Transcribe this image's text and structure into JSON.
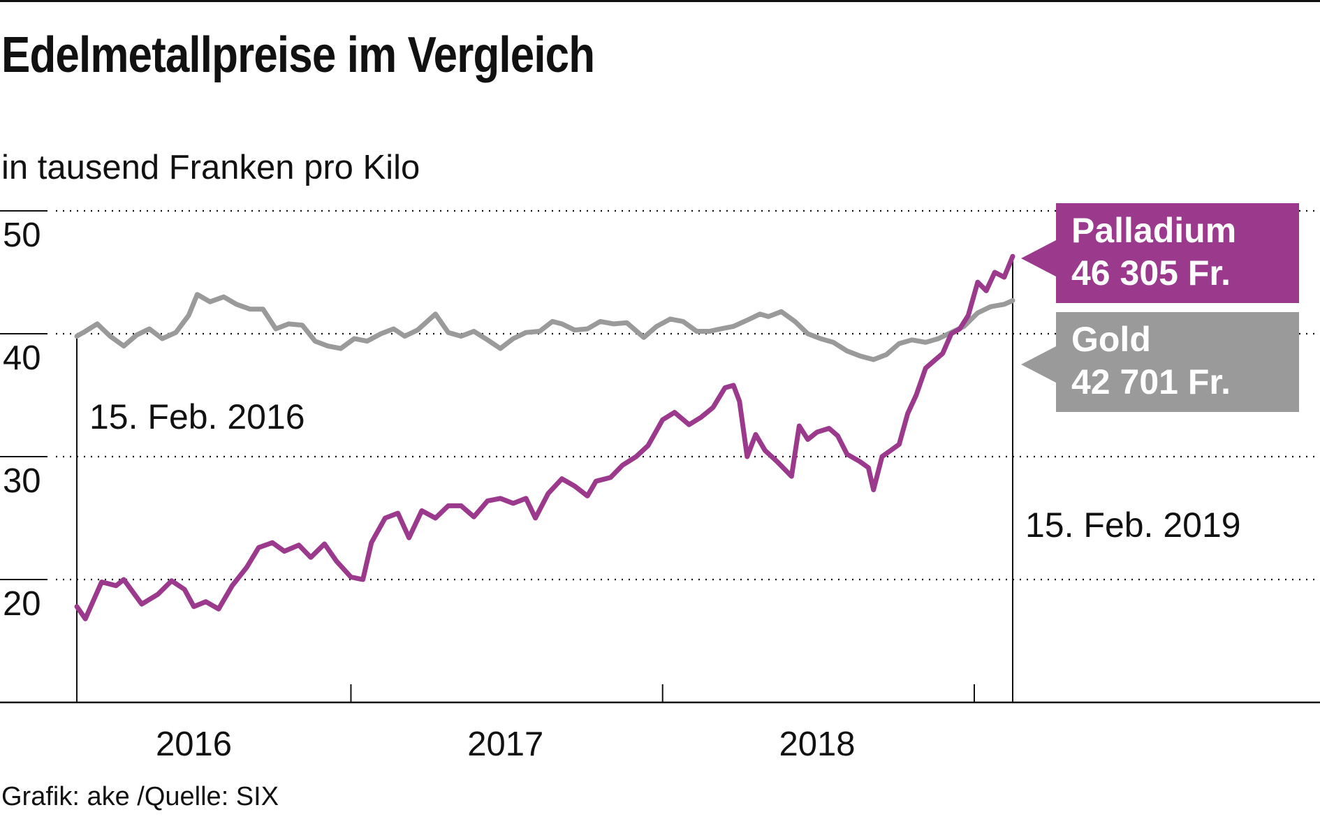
{
  "title": "Edelmetallpreise im Vergleich",
  "subtitle": "in tausend Franken pro Kilo",
  "source": "Grafik: ake /Quelle: SIX",
  "colors": {
    "palladium": "#9b3a8d",
    "gold": "#9a9a9a",
    "axis": "#111111"
  },
  "chart_data": {
    "type": "line",
    "ylim": [
      10,
      50
    ],
    "yticks": [
      20,
      30,
      40,
      50
    ],
    "xlim": [
      "2016-02-15",
      "2019-02-15"
    ],
    "xaxis_year_labels": [
      {
        "label": "2016",
        "date": "2016-07-01"
      },
      {
        "label": "2017",
        "date": "2017-07-01"
      },
      {
        "label": "2018",
        "date": "2018-07-01"
      }
    ],
    "xaxis_ticks": [
      "2016-02-15",
      "2017-01-01",
      "2018-01-01",
      "2019-01-01"
    ],
    "grid": "horizontal dotted",
    "annotations": [
      {
        "text": "15. Feb. 2016",
        "date": "2016-02-15"
      },
      {
        "text": "15. Feb. 2019",
        "date": "2019-02-15"
      }
    ],
    "series": [
      {
        "name": "Palladium",
        "end_label": "46 305 Fr.",
        "color": "#9b3a8d",
        "points": [
          [
            "2016-02-15",
            17.8
          ],
          [
            "2016-02-25",
            16.8
          ],
          [
            "2016-03-15",
            19.8
          ],
          [
            "2016-04-01",
            19.5
          ],
          [
            "2016-04-10",
            20.0
          ],
          [
            "2016-05-01",
            18.0
          ],
          [
            "2016-05-20",
            18.8
          ],
          [
            "2016-06-05",
            19.9
          ],
          [
            "2016-06-20",
            19.2
          ],
          [
            "2016-07-01",
            17.8
          ],
          [
            "2016-07-15",
            18.2
          ],
          [
            "2016-07-30",
            17.6
          ],
          [
            "2016-08-15",
            19.5
          ],
          [
            "2016-09-01",
            21.0
          ],
          [
            "2016-09-15",
            22.6
          ],
          [
            "2016-10-01",
            23.0
          ],
          [
            "2016-10-15",
            22.3
          ],
          [
            "2016-11-01",
            22.8
          ],
          [
            "2016-11-15",
            21.8
          ],
          [
            "2016-12-01",
            22.9
          ],
          [
            "2016-12-15",
            21.5
          ],
          [
            "2017-01-01",
            20.2
          ],
          [
            "2017-01-15",
            20.0
          ],
          [
            "2017-01-25",
            23.0
          ],
          [
            "2017-02-10",
            25.0
          ],
          [
            "2017-02-25",
            25.4
          ],
          [
            "2017-03-10",
            23.4
          ],
          [
            "2017-03-25",
            25.6
          ],
          [
            "2017-04-10",
            25.0
          ],
          [
            "2017-04-25",
            26.0
          ],
          [
            "2017-05-10",
            26.0
          ],
          [
            "2017-05-25",
            25.1
          ],
          [
            "2017-06-10",
            26.4
          ],
          [
            "2017-06-25",
            26.6
          ],
          [
            "2017-07-10",
            26.2
          ],
          [
            "2017-07-25",
            26.6
          ],
          [
            "2017-08-05",
            25.0
          ],
          [
            "2017-08-20",
            27.0
          ],
          [
            "2017-09-05",
            28.2
          ],
          [
            "2017-09-20",
            27.6
          ],
          [
            "2017-10-05",
            26.8
          ],
          [
            "2017-10-15",
            28.0
          ],
          [
            "2017-11-01",
            28.3
          ],
          [
            "2017-11-15",
            29.3
          ],
          [
            "2017-12-01",
            30.0
          ],
          [
            "2017-12-15",
            30.9
          ],
          [
            "2018-01-01",
            33.0
          ],
          [
            "2018-01-15",
            33.6
          ],
          [
            "2018-02-01",
            32.6
          ],
          [
            "2018-02-15",
            33.2
          ],
          [
            "2018-03-01",
            34.0
          ],
          [
            "2018-03-15",
            35.6
          ],
          [
            "2018-03-25",
            35.8
          ],
          [
            "2018-04-01",
            34.5
          ],
          [
            "2018-04-10",
            30.0
          ],
          [
            "2018-04-20",
            31.8
          ],
          [
            "2018-05-01",
            30.5
          ],
          [
            "2018-05-15",
            29.6
          ],
          [
            "2018-06-01",
            28.4
          ],
          [
            "2018-06-10",
            32.5
          ],
          [
            "2018-06-20",
            31.4
          ],
          [
            "2018-07-01",
            32.0
          ],
          [
            "2018-07-15",
            32.3
          ],
          [
            "2018-07-25",
            31.7
          ],
          [
            "2018-08-05",
            30.2
          ],
          [
            "2018-08-20",
            29.6
          ],
          [
            "2018-08-30",
            29.1
          ],
          [
            "2018-09-05",
            27.3
          ],
          [
            "2018-09-15",
            30.0
          ],
          [
            "2018-09-25",
            30.5
          ],
          [
            "2018-10-05",
            31.0
          ],
          [
            "2018-10-15",
            33.5
          ],
          [
            "2018-10-25",
            35.0
          ],
          [
            "2018-11-05",
            37.2
          ],
          [
            "2018-11-15",
            37.8
          ],
          [
            "2018-11-25",
            38.4
          ],
          [
            "2018-12-05",
            40.0
          ],
          [
            "2018-12-15",
            40.4
          ],
          [
            "2018-12-25",
            41.5
          ],
          [
            "2019-01-05",
            44.2
          ],
          [
            "2019-01-15",
            43.5
          ],
          [
            "2019-01-25",
            45.0
          ],
          [
            "2019-02-05",
            44.6
          ],
          [
            "2019-02-15",
            46.3
          ]
        ]
      },
      {
        "name": "Gold",
        "end_label": "42 701 Fr.",
        "color": "#9a9a9a",
        "points": [
          [
            "2016-02-15",
            39.8
          ],
          [
            "2016-02-25",
            40.2
          ],
          [
            "2016-03-10",
            40.8
          ],
          [
            "2016-03-25",
            39.8
          ],
          [
            "2016-04-10",
            39.0
          ],
          [
            "2016-04-25",
            39.9
          ],
          [
            "2016-05-10",
            40.4
          ],
          [
            "2016-05-25",
            39.6
          ],
          [
            "2016-06-10",
            40.1
          ],
          [
            "2016-06-25",
            41.5
          ],
          [
            "2016-07-05",
            43.2
          ],
          [
            "2016-07-20",
            42.6
          ],
          [
            "2016-08-05",
            43.0
          ],
          [
            "2016-08-20",
            42.4
          ],
          [
            "2016-09-05",
            42.0
          ],
          [
            "2016-09-20",
            42.0
          ],
          [
            "2016-10-05",
            40.4
          ],
          [
            "2016-10-20",
            40.8
          ],
          [
            "2016-11-05",
            40.7
          ],
          [
            "2016-11-20",
            39.4
          ],
          [
            "2016-12-05",
            39.0
          ],
          [
            "2016-12-20",
            38.8
          ],
          [
            "2017-01-05",
            39.6
          ],
          [
            "2017-01-20",
            39.4
          ],
          [
            "2017-02-05",
            40.0
          ],
          [
            "2017-02-20",
            40.4
          ],
          [
            "2017-03-05",
            39.8
          ],
          [
            "2017-03-20",
            40.3
          ],
          [
            "2017-04-10",
            41.6
          ],
          [
            "2017-04-25",
            40.1
          ],
          [
            "2017-05-10",
            39.8
          ],
          [
            "2017-05-25",
            40.2
          ],
          [
            "2017-06-10",
            39.5
          ],
          [
            "2017-06-25",
            38.8
          ],
          [
            "2017-07-10",
            39.6
          ],
          [
            "2017-07-25",
            40.1
          ],
          [
            "2017-08-10",
            40.2
          ],
          [
            "2017-08-25",
            41.0
          ],
          [
            "2017-09-05",
            40.8
          ],
          [
            "2017-09-20",
            40.3
          ],
          [
            "2017-10-05",
            40.4
          ],
          [
            "2017-10-20",
            41.0
          ],
          [
            "2017-11-05",
            40.8
          ],
          [
            "2017-11-20",
            40.9
          ],
          [
            "2017-12-10",
            39.7
          ],
          [
            "2017-12-25",
            40.6
          ],
          [
            "2018-01-10",
            41.2
          ],
          [
            "2018-01-25",
            41.0
          ],
          [
            "2018-02-10",
            40.2
          ],
          [
            "2018-02-25",
            40.2
          ],
          [
            "2018-03-10",
            40.4
          ],
          [
            "2018-03-25",
            40.6
          ],
          [
            "2018-04-10",
            41.1
          ],
          [
            "2018-04-25",
            41.6
          ],
          [
            "2018-05-05",
            41.4
          ],
          [
            "2018-05-20",
            41.8
          ],
          [
            "2018-06-05",
            41.0
          ],
          [
            "2018-06-20",
            40.0
          ],
          [
            "2018-07-05",
            39.6
          ],
          [
            "2018-07-20",
            39.3
          ],
          [
            "2018-08-05",
            38.6
          ],
          [
            "2018-08-20",
            38.2
          ],
          [
            "2018-09-05",
            37.9
          ],
          [
            "2018-09-20",
            38.3
          ],
          [
            "2018-10-05",
            39.2
          ],
          [
            "2018-10-20",
            39.5
          ],
          [
            "2018-11-05",
            39.3
          ],
          [
            "2018-11-20",
            39.6
          ],
          [
            "2018-12-05",
            40.1
          ],
          [
            "2018-12-20",
            40.6
          ],
          [
            "2019-01-05",
            41.7
          ],
          [
            "2019-01-20",
            42.2
          ],
          [
            "2019-02-05",
            42.4
          ],
          [
            "2019-02-15",
            42.7
          ]
        ]
      }
    ]
  }
}
